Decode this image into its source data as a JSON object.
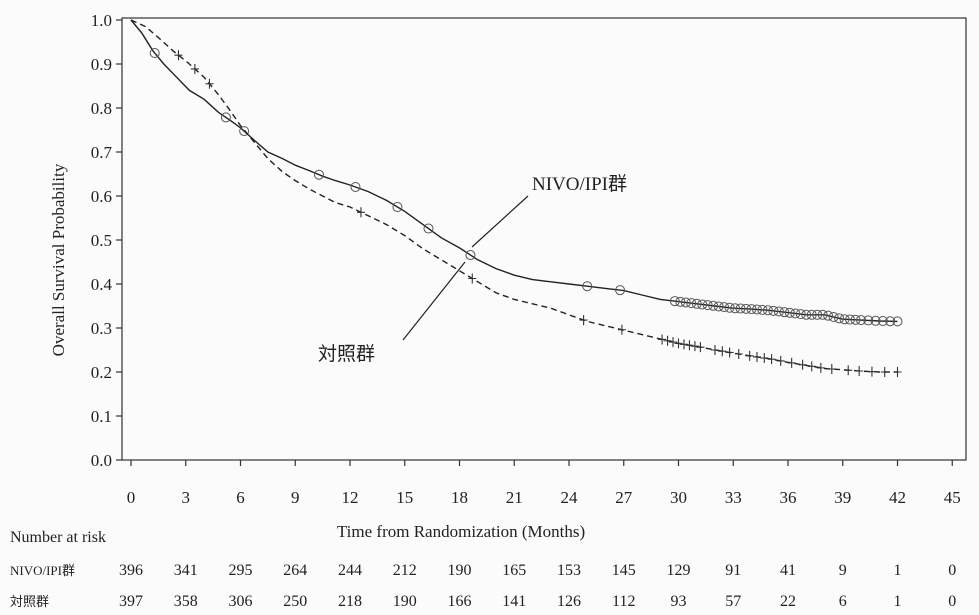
{
  "chart_data": {
    "type": "line",
    "xlabel": "Time from Randomization (Months)",
    "ylabel": "Overall Survival Probability",
    "xlim": [
      0,
      45
    ],
    "ylim": [
      0,
      1.0
    ],
    "x_ticks": [
      "0",
      "3",
      "6",
      "9",
      "12",
      "15",
      "18",
      "21",
      "24",
      "27",
      "30",
      "33",
      "36",
      "39",
      "42",
      "45"
    ],
    "y_ticks": [
      "0.0",
      "0.1",
      "0.2",
      "0.3",
      "0.4",
      "0.5",
      "0.6",
      "0.7",
      "0.8",
      "0.9",
      "1.0"
    ],
    "grid": false,
    "series": [
      {
        "name": "NIVO/IPI群",
        "style": "solid",
        "censor_marker": "circle",
        "x": [
          0,
          0.6,
          1.2,
          1.8,
          2.5,
          3.2,
          4,
          4.8,
          5.5,
          6,
          6.8,
          7.5,
          8.3,
          9,
          9.8,
          10.5,
          11.2,
          12,
          13,
          14,
          15,
          16,
          17,
          18,
          19,
          20,
          21,
          22,
          23,
          24,
          25,
          26,
          27,
          28,
          29,
          30,
          31,
          32,
          33,
          34,
          35,
          36,
          37,
          38,
          39,
          40,
          41,
          42
        ],
        "y": [
          1.0,
          0.97,
          0.93,
          0.9,
          0.87,
          0.84,
          0.82,
          0.79,
          0.77,
          0.755,
          0.725,
          0.7,
          0.685,
          0.67,
          0.657,
          0.645,
          0.635,
          0.625,
          0.61,
          0.59,
          0.565,
          0.535,
          0.505,
          0.482,
          0.455,
          0.435,
          0.42,
          0.41,
          0.405,
          0.4,
          0.395,
          0.39,
          0.385,
          0.375,
          0.365,
          0.36,
          0.355,
          0.35,
          0.345,
          0.343,
          0.34,
          0.335,
          0.33,
          0.33,
          0.32,
          0.318,
          0.316,
          0.315
        ],
        "censors": [
          1.3,
          5.2,
          6.2,
          10.3,
          12.3,
          14.6,
          16.3,
          18.6,
          25,
          26.8,
          29.8,
          30.1,
          30.4,
          30.7,
          31,
          31.3,
          31.6,
          31.9,
          32.2,
          32.5,
          32.8,
          33.1,
          33.4,
          33.7,
          34,
          34.3,
          34.6,
          34.9,
          35.2,
          35.5,
          35.8,
          36.1,
          36.4,
          36.7,
          37,
          37.3,
          37.6,
          37.9,
          38.2,
          38.5,
          38.8,
          39.1,
          39.4,
          39.7,
          40,
          40.4,
          40.8,
          41.2,
          41.6,
          42
        ]
      },
      {
        "name": "対照群",
        "style": "dashed",
        "censor_marker": "plus",
        "x": [
          0,
          0.8,
          1.5,
          2.3,
          3.2,
          4,
          4.8,
          5.5,
          6,
          6.8,
          7.5,
          8.3,
          9,
          9.8,
          10.5,
          11.2,
          12,
          13,
          14,
          15,
          16,
          17,
          18,
          19,
          20,
          21,
          22,
          23,
          24,
          25,
          26,
          27,
          28,
          29,
          30,
          31,
          32,
          33,
          34,
          35,
          36,
          37,
          38,
          39,
          40,
          41,
          42
        ],
        "y": [
          1.0,
          0.985,
          0.96,
          0.93,
          0.9,
          0.87,
          0.83,
          0.79,
          0.76,
          0.72,
          0.685,
          0.655,
          0.635,
          0.615,
          0.6,
          0.585,
          0.575,
          0.555,
          0.535,
          0.51,
          0.48,
          0.455,
          0.43,
          0.405,
          0.38,
          0.365,
          0.355,
          0.345,
          0.33,
          0.315,
          0.305,
          0.295,
          0.285,
          0.275,
          0.265,
          0.258,
          0.25,
          0.243,
          0.236,
          0.23,
          0.222,
          0.215,
          0.208,
          0.205,
          0.202,
          0.2,
          0.2
        ],
        "censors": [
          2.6,
          3.5,
          4.3,
          12.6,
          18.7,
          24.8,
          26.9,
          29.1,
          29.4,
          29.7,
          30,
          30.3,
          30.6,
          30.9,
          31.2,
          32,
          32.4,
          32.8,
          33.3,
          33.9,
          34.3,
          34.7,
          35.1,
          35.6,
          36.2,
          36.8,
          37.3,
          37.8,
          38.4,
          39.3,
          39.9,
          40.6,
          41.3,
          42
        ]
      }
    ],
    "annotations": [
      {
        "text": "NIVO/IPI群",
        "series": "NIVO/IPI群"
      },
      {
        "text": "対照群",
        "series": "対照群"
      }
    ]
  },
  "risk_table": {
    "title": "Number at risk",
    "rows": [
      {
        "label": "NIVO/IPI群",
        "values": [
          "396",
          "341",
          "295",
          "264",
          "244",
          "212",
          "190",
          "165",
          "153",
          "145",
          "129",
          "91",
          "41",
          "9",
          "1",
          "0"
        ]
      },
      {
        "label": "対照群",
        "values": [
          "397",
          "358",
          "306",
          "250",
          "218",
          "190",
          "166",
          "141",
          "126",
          "112",
          "93",
          "57",
          "22",
          "6",
          "1",
          "0"
        ]
      }
    ]
  }
}
